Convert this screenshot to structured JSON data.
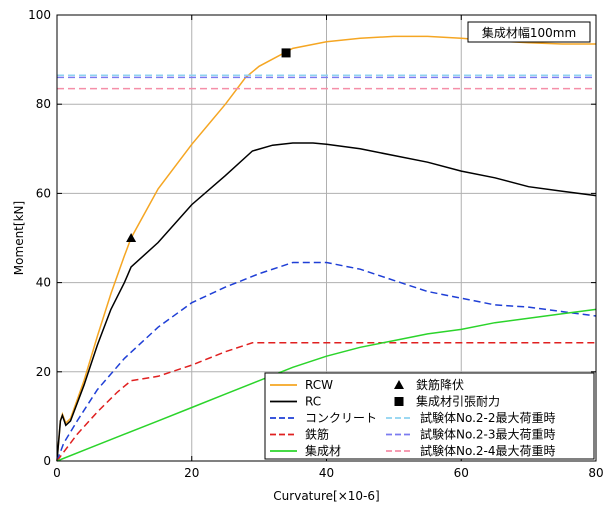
{
  "chart_data": {
    "type": "line",
    "title": "",
    "annotation": "集成材幅100mm",
    "xlabel": "Curvature[×10-6]",
    "ylabel": "Moment[kN]",
    "xlim": [
      0,
      80
    ],
    "ylim": [
      0,
      100
    ],
    "xticks": [
      0,
      20,
      40,
      60,
      80
    ],
    "yticks": [
      0,
      20,
      40,
      60,
      80,
      100
    ],
    "grid": true,
    "legend_position": "bottom-right",
    "series": [
      {
        "name": "RCW",
        "color": "#f5a623",
        "style": "solid",
        "points": [
          [
            0,
            0
          ],
          [
            0.5,
            9
          ],
          [
            0.8,
            10.5
          ],
          [
            1.3,
            8.5
          ],
          [
            2,
            9.5
          ],
          [
            4,
            18
          ],
          [
            6,
            28
          ],
          [
            8,
            37.5
          ],
          [
            10,
            46
          ],
          [
            11,
            50
          ],
          [
            15,
            61
          ],
          [
            20,
            71
          ],
          [
            25,
            80
          ],
          [
            28,
            86
          ],
          [
            30,
            88.5
          ],
          [
            35,
            92.5
          ],
          [
            40,
            94
          ],
          [
            45,
            94.8
          ],
          [
            50,
            95.2
          ],
          [
            55,
            95.2
          ],
          [
            60,
            94.8
          ],
          [
            65,
            94.2
          ],
          [
            70,
            93.8
          ],
          [
            75,
            93.5
          ],
          [
            80,
            93.5
          ]
        ]
      },
      {
        "name": "RC",
        "color": "#000000",
        "style": "solid",
        "points": [
          [
            0,
            0
          ],
          [
            0.5,
            9
          ],
          [
            0.8,
            10.2
          ],
          [
            1.3,
            8
          ],
          [
            2,
            9
          ],
          [
            4,
            17
          ],
          [
            6,
            26
          ],
          [
            8,
            34
          ],
          [
            10,
            40
          ],
          [
            11,
            43.5
          ],
          [
            15,
            49
          ],
          [
            20,
            57.5
          ],
          [
            25,
            64
          ],
          [
            29,
            69.5
          ],
          [
            32,
            70.8
          ],
          [
            35,
            71.3
          ],
          [
            38,
            71.3
          ],
          [
            40,
            71
          ],
          [
            45,
            70
          ],
          [
            50,
            68.5
          ],
          [
            55,
            67
          ],
          [
            60,
            65
          ],
          [
            65,
            63.5
          ],
          [
            70,
            61.5
          ],
          [
            75,
            60.5
          ],
          [
            80,
            59.5
          ]
        ]
      },
      {
        "name": "コンクリート",
        "color": "#1f3fd6",
        "style": "dashed",
        "points": [
          [
            0,
            0
          ],
          [
            1,
            4
          ],
          [
            3,
            9
          ],
          [
            6,
            16
          ],
          [
            10,
            23
          ],
          [
            15,
            30
          ],
          [
            20,
            35.5
          ],
          [
            25,
            39
          ],
          [
            30,
            42
          ],
          [
            35,
            44.5
          ],
          [
            40,
            44.5
          ],
          [
            45,
            43
          ],
          [
            50,
            40.5
          ],
          [
            55,
            38
          ],
          [
            60,
            36.5
          ],
          [
            65,
            35
          ],
          [
            70,
            34.5
          ],
          [
            75,
            33.5
          ],
          [
            80,
            32.5
          ]
        ]
      },
      {
        "name": "鉄筋",
        "color": "#e02020",
        "style": "dashed",
        "points": [
          [
            0,
            0
          ],
          [
            1,
            2
          ],
          [
            3,
            6
          ],
          [
            6,
            11
          ],
          [
            9,
            15.5
          ],
          [
            11,
            18
          ],
          [
            15,
            19
          ],
          [
            20,
            21.5
          ],
          [
            25,
            24.5
          ],
          [
            29,
            26.5
          ],
          [
            35,
            26.5
          ],
          [
            40,
            26.5
          ],
          [
            50,
            26.5
          ],
          [
            60,
            26.5
          ],
          [
            70,
            26.5
          ],
          [
            80,
            26.5
          ]
        ]
      },
      {
        "name": "集成材",
        "color": "#2bd42b",
        "style": "solid",
        "points": [
          [
            0,
            0
          ],
          [
            5,
            3
          ],
          [
            10,
            6
          ],
          [
            15,
            9
          ],
          [
            20,
            12
          ],
          [
            25,
            15
          ],
          [
            30,
            18
          ],
          [
            35,
            21
          ],
          [
            40,
            23.5
          ],
          [
            45,
            25.5
          ],
          [
            50,
            27
          ],
          [
            55,
            28.5
          ],
          [
            60,
            29.5
          ],
          [
            65,
            31
          ],
          [
            70,
            32
          ],
          [
            75,
            33
          ],
          [
            80,
            34
          ]
        ]
      },
      {
        "name": "試験体No.2-2最大荷重時",
        "color": "#8fd3f0",
        "style": "dashed",
        "points": [
          [
            0,
            86.5
          ],
          [
            80,
            86.5
          ]
        ]
      },
      {
        "name": "試験体No.2-3最大荷重時",
        "color": "#7b7bf0",
        "style": "dashed",
        "points": [
          [
            0,
            86
          ],
          [
            80,
            86
          ]
        ]
      },
      {
        "name": "試験体No.2-4最大荷重時",
        "color": "#f58fa8",
        "style": "dashed",
        "points": [
          [
            0,
            83.5
          ],
          [
            80,
            83.5
          ]
        ]
      }
    ],
    "markers": [
      {
        "name": "鉄筋降伏",
        "shape": "triangle",
        "x": 11,
        "y": 50
      },
      {
        "name": "集成材引張耐力",
        "shape": "square",
        "x": 34,
        "y": 91.5
      }
    ]
  }
}
